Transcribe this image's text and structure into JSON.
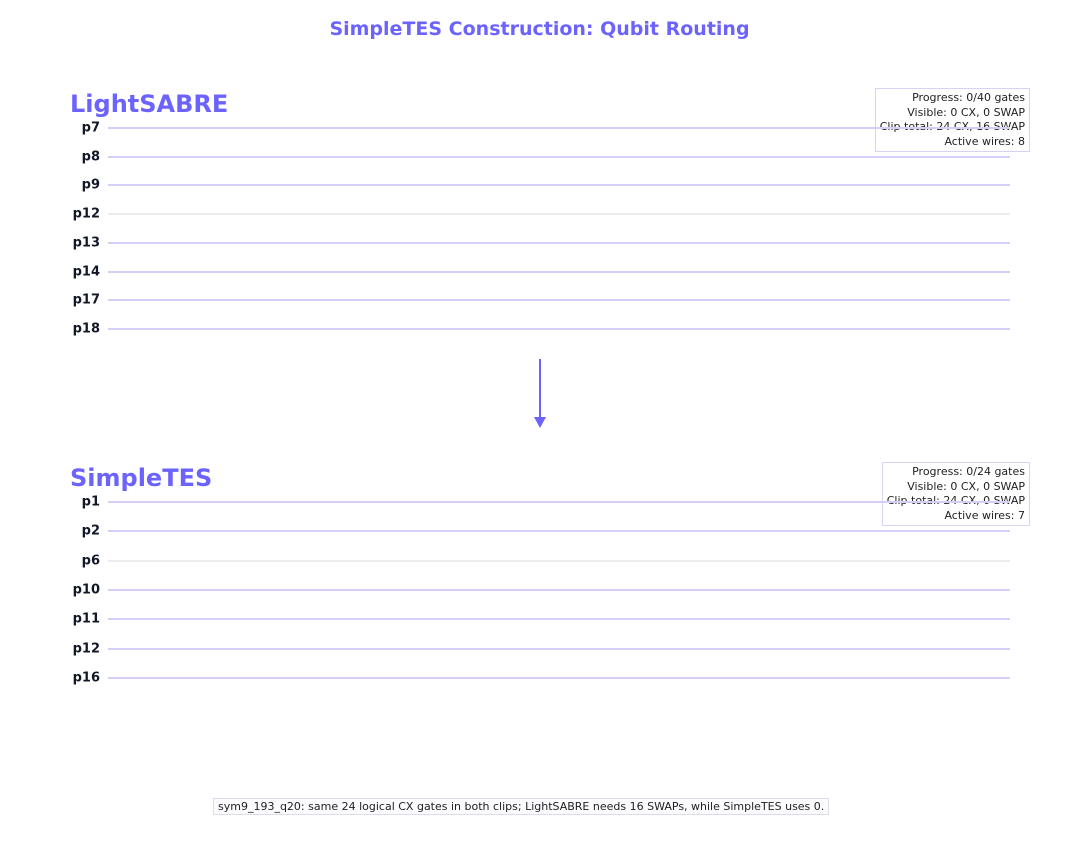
{
  "title": "SimpleTES Construction: Qubit Routing",
  "panels": [
    {
      "title": "LightSABRE",
      "wires": [
        "p7",
        "p8",
        "p9",
        "p12",
        "p13",
        "p14",
        "p17",
        "p18"
      ],
      "gray_wires": [
        "p12"
      ],
      "stats": [
        "Progress: 0/40 gates",
        "Visible: 0 CX, 0 SWAP",
        "Clip total: 24 CX, 16 SWAP",
        "Active wires: 8"
      ]
    },
    {
      "title": "SimpleTES",
      "wires": [
        "p1",
        "p2",
        "p6",
        "p10",
        "p11",
        "p12",
        "p16"
      ],
      "gray_wires": [
        "p6"
      ],
      "stats": [
        "Progress: 0/24 gates",
        "Visible: 0 CX, 0 SWAP",
        "Clip total: 24 CX, 0 SWAP",
        "Active wires: 7"
      ]
    }
  ],
  "arrow_icon": "arrow-down-icon",
  "accent_color": "#6c63ff",
  "caption": "sym9_193_q20: same 24 logical CX gates in both clips; LightSABRE needs 16 SWAPs, while SimpleTES uses 0."
}
